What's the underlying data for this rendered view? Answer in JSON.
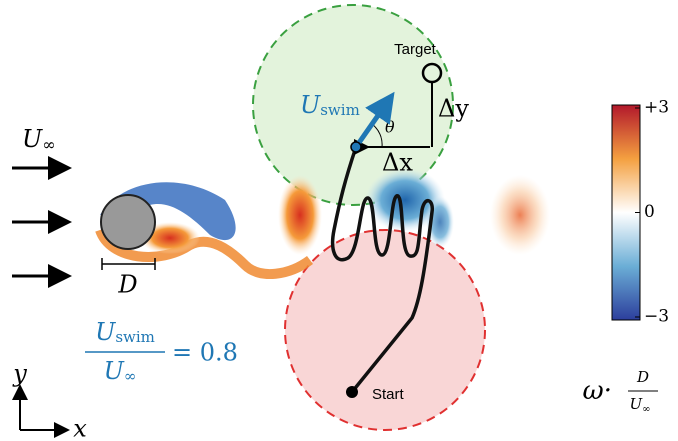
{
  "freestream": {
    "base": "U",
    "sub": "∞"
  },
  "swim_velocity": {
    "base": "U",
    "sub": "swim"
  },
  "angle": "θ",
  "dx": "Δx",
  "dy": "Δy",
  "diameter": "D",
  "target": "Target",
  "start": "Start",
  "speed_ratio": {
    "numerator": {
      "base": "U",
      "sub": "swim"
    },
    "denominator": {
      "base": "U",
      "sub": "∞"
    },
    "equals": "= 0.8"
  },
  "colorbar": {
    "ticks": [
      {
        "value": 3,
        "label": "+3"
      },
      0,
      {
        "value": -3,
        "label": "−3"
      }
    ],
    "lim": [
      -3,
      3
    ],
    "label": {
      "symbol": "ω·",
      "numerator": "D",
      "denominator": {
        "base": "U",
        "sub": "∞"
      }
    }
  },
  "axes": {
    "y": "y",
    "x": "x"
  }
}
